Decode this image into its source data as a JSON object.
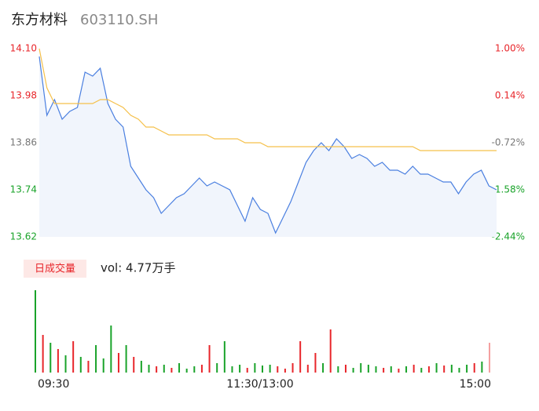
{
  "header": {
    "title": "东方材料",
    "subtitle": "603110.SH"
  },
  "chart_data": [
    {
      "type": "line",
      "x": [
        0,
        4,
        8,
        12,
        16,
        20,
        24,
        28,
        32,
        36,
        40,
        44,
        48,
        52,
        56,
        60,
        64,
        68,
        72,
        76,
        80,
        84,
        88,
        92,
        96,
        100,
        104,
        108,
        112,
        116,
        120,
        124,
        128,
        132,
        136,
        140,
        144,
        148,
        152,
        156,
        160,
        164,
        168,
        172,
        176,
        180,
        184,
        188,
        192,
        196,
        200,
        204,
        208,
        212,
        216,
        220,
        224,
        228,
        232,
        236,
        240
      ],
      "xlim": [
        0,
        240
      ],
      "ylim": [
        13.62,
        14.1
      ],
      "yticks": [
        {
          "value": 14.1,
          "label": "14.10"
        },
        {
          "value": 13.98,
          "label": "13.98"
        },
        {
          "value": 13.86,
          "label": "13.86"
        },
        {
          "value": 13.74,
          "label": "13.74"
        },
        {
          "value": 13.62,
          "label": "13.62"
        }
      ],
      "ytick_colors": [
        "#e8262b",
        "#e8262b",
        "#777777",
        "#1aa32a",
        "#1aa32a"
      ],
      "y2lim": [
        1.0,
        -2.44
      ],
      "y2ticks": [
        {
          "value": 1.0,
          "label": "1.00%"
        },
        {
          "value": 0.14,
          "label": "0.14%"
        },
        {
          "value": -0.72,
          "label": "-0.72%"
        },
        {
          "value": -1.58,
          "label": "-1.58%"
        },
        {
          "value": -2.44,
          "label": "-2.44%"
        }
      ],
      "series": [
        {
          "name": "price",
          "color": "#4a7fe0",
          "values": [
            14.08,
            13.93,
            13.97,
            13.92,
            13.94,
            13.95,
            14.04,
            14.03,
            14.05,
            13.96,
            13.92,
            13.9,
            13.8,
            13.77,
            13.74,
            13.72,
            13.68,
            13.7,
            13.72,
            13.73,
            13.75,
            13.77,
            13.75,
            13.76,
            13.75,
            13.74,
            13.7,
            13.66,
            13.72,
            13.69,
            13.68,
            13.63,
            13.67,
            13.71,
            13.76,
            13.81,
            13.84,
            13.86,
            13.84,
            13.87,
            13.85,
            13.82,
            13.83,
            13.82,
            13.8,
            13.81,
            13.79,
            13.79,
            13.78,
            13.8,
            13.78,
            13.78,
            13.77,
            13.76,
            13.76,
            13.73,
            13.76,
            13.78,
            13.79,
            13.75,
            13.74
          ]
        },
        {
          "name": "average",
          "color": "#f5c04a",
          "values": [
            14.1,
            14.0,
            13.96,
            13.96,
            13.96,
            13.96,
            13.96,
            13.96,
            13.97,
            13.97,
            13.96,
            13.95,
            13.93,
            13.92,
            13.9,
            13.9,
            13.89,
            13.88,
            13.88,
            13.88,
            13.88,
            13.88,
            13.88,
            13.87,
            13.87,
            13.87,
            13.87,
            13.86,
            13.86,
            13.86,
            13.85,
            13.85,
            13.85,
            13.85,
            13.85,
            13.85,
            13.85,
            13.85,
            13.85,
            13.85,
            13.85,
            13.85,
            13.85,
            13.85,
            13.85,
            13.85,
            13.85,
            13.85,
            13.85,
            13.85,
            13.84,
            13.84,
            13.84,
            13.84,
            13.84,
            13.84,
            13.84,
            13.84,
            13.84,
            13.84,
            13.84
          ]
        }
      ]
    },
    {
      "type": "bar",
      "legend": "日成交量",
      "annotation": "vol: 4.77万手",
      "x": [
        0,
        4,
        8,
        12,
        16,
        20,
        24,
        28,
        32,
        36,
        40,
        44,
        48,
        52,
        56,
        60,
        64,
        68,
        72,
        76,
        80,
        84,
        88,
        92,
        96,
        100,
        104,
        108,
        112,
        116,
        120,
        124,
        128,
        132,
        136,
        140,
        144,
        148,
        152,
        156,
        160,
        164,
        168,
        172,
        176,
        180,
        184,
        188,
        192,
        196,
        200,
        204,
        208,
        212,
        216,
        220,
        224,
        228,
        232,
        236,
        240
      ],
      "xlim": [
        0,
        240
      ],
      "ylim": [
        0,
        110
      ],
      "xticks": [
        {
          "value": 0,
          "label": "09:30"
        },
        {
          "value": 120,
          "label": "11:30/13:00"
        },
        {
          "value": 240,
          "label": "15:00"
        }
      ],
      "values": [
        105,
        48,
        38,
        30,
        22,
        40,
        20,
        15,
        35,
        18,
        60,
        25,
        35,
        20,
        15,
        10,
        8,
        10,
        6,
        12,
        5,
        8,
        10,
        35,
        12,
        40,
        8,
        10,
        6,
        12,
        9,
        10,
        8,
        5,
        12,
        40,
        10,
        25,
        12,
        55,
        8,
        10,
        6,
        12,
        10,
        8,
        6,
        8,
        5,
        8,
        10,
        6,
        8,
        12,
        9,
        10,
        6,
        10,
        12,
        14,
        38
      ],
      "colors": [
        "#1aa32a",
        "#e8262b",
        "#1aa32a",
        "#e8262b",
        "#1aa32a",
        "#e8262b",
        "#1aa32a",
        "#e8262b",
        "#1aa32a",
        "#1aa32a",
        "#1aa32a",
        "#e8262b",
        "#1aa32a",
        "#e8262b",
        "#1aa32a",
        "#1aa32a",
        "#e8262b",
        "#1aa32a",
        "#e8262b",
        "#1aa32a",
        "#1aa32a",
        "#1aa32a",
        "#e8262b",
        "#e8262b",
        "#1aa32a",
        "#1aa32a",
        "#1aa32a",
        "#1aa32a",
        "#e8262b",
        "#1aa32a",
        "#1aa32a",
        "#1aa32a",
        "#e8262b",
        "#e8262b",
        "#e8262b",
        "#e8262b",
        "#e8262b",
        "#e8262b",
        "#1aa32a",
        "#e8262b",
        "#1aa32a",
        "#e8262b",
        "#1aa32a",
        "#1aa32a",
        "#1aa32a",
        "#1aa32a",
        "#e8262b",
        "#1aa32a",
        "#e8262b",
        "#1aa32a",
        "#e8262b",
        "#1aa32a",
        "#e8262b",
        "#1aa32a",
        "#e8262b",
        "#1aa32a",
        "#1aa32a",
        "#1aa32a",
        "#e8262b",
        "#1aa32a",
        "#f4a0a0"
      ]
    }
  ]
}
